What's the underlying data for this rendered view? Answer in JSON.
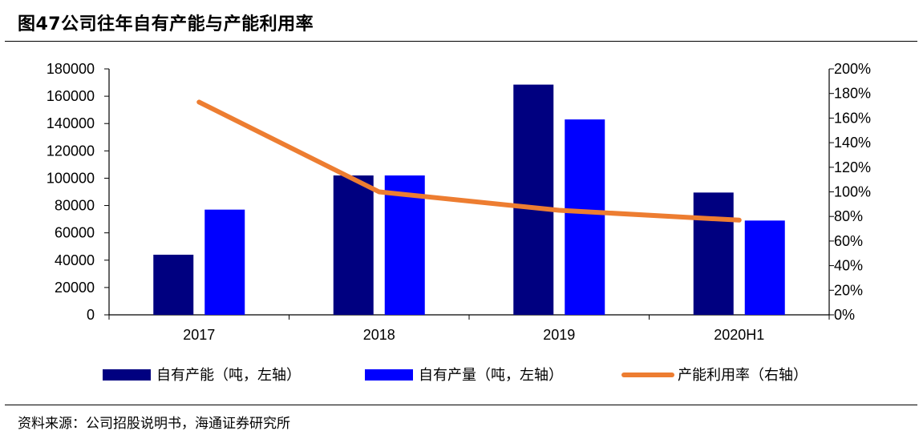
{
  "figure": {
    "title": "图47公司往年自有产能与产能利用率",
    "source": "资料来源：公司招股说明书，海通证券研究所"
  },
  "chart_data": {
    "type": "bar",
    "categories": [
      "2017",
      "2018",
      "2019",
      "2020H1"
    ],
    "series": [
      {
        "name": "自有产能（吨，左轴）",
        "type": "bar",
        "axis": "left",
        "color": "#000080",
        "values": [
          44000,
          102000,
          168500,
          89500
        ]
      },
      {
        "name": "自有产量（吨，左轴）",
        "type": "bar",
        "axis": "left",
        "color": "#0000FF",
        "values": [
          77000,
          102000,
          143000,
          69000
        ]
      },
      {
        "name": "产能利用率（右轴）",
        "type": "line",
        "axis": "right",
        "color": "#ED7D31",
        "values": [
          1.73,
          1.0,
          0.85,
          0.77
        ]
      }
    ],
    "y_left": {
      "min": 0,
      "max": 180000,
      "step": 20000,
      "ticks": [
        "0",
        "20000",
        "40000",
        "60000",
        "80000",
        "100000",
        "120000",
        "140000",
        "160000",
        "180000"
      ]
    },
    "y_right": {
      "min": 0,
      "max": 2.0,
      "step": 0.2,
      "ticks": [
        "0%",
        "20%",
        "40%",
        "60%",
        "80%",
        "100%",
        "120%",
        "140%",
        "160%",
        "180%",
        "200%"
      ]
    },
    "grid": false,
    "legend_position": "bottom"
  }
}
